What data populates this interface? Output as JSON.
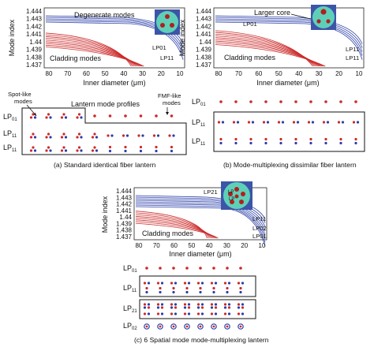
{
  "panel_a": {
    "ylabel": "Mode index",
    "xlabel": "Inner diameter (μm)",
    "yticks": [
      "1.444",
      "1.443",
      "1.442",
      "1.441",
      "1.44",
      "1.439",
      "1.438",
      "1.437"
    ],
    "xticks": [
      "80",
      "70",
      "60",
      "50",
      "40",
      "30",
      "20",
      "10"
    ],
    "label_degenerate": "Degenerate modes",
    "label_cladding": "Cladding modes",
    "label_lp01": "LP01",
    "label_lp11": "LP11",
    "annot_spot": "Spot-like modes",
    "annot_lantern": "Lantern mode profiles",
    "annot_fmf": "FMF-like modes",
    "rows": [
      "LP01",
      "LP11",
      "LP11"
    ],
    "caption": "(a) Standard identical fiber lantern"
  },
  "panel_b": {
    "ylabel": "Mode index",
    "xlabel": "Inner diameter (μm)",
    "yticks": [
      "1.444",
      "1.443",
      "1.442",
      "1.441",
      "1.44",
      "1.439",
      "1.438",
      "1.437"
    ],
    "xticks": [
      "80",
      "70",
      "60",
      "50",
      "40",
      "30",
      "20",
      "10"
    ],
    "label_larger_core": "Larger core",
    "label_cladding": "Cladding modes",
    "label_lp01": "LP01",
    "label_lp11a": "LP11",
    "label_lp11b": "LP11",
    "rows": [
      "LP01",
      "LP11",
      "LP11"
    ],
    "caption": "(b) Mode-multiplexing dissimilar fiber lantern"
  },
  "panel_c": {
    "ylabel": "Mode index",
    "xlabel": "Inner diameter (μm)",
    "yticks": [
      "1.444",
      "1.443",
      "1.442",
      "1.441",
      "1.44",
      "1.439",
      "1.438",
      "1.437"
    ],
    "xticks": [
      "80",
      "70",
      "60",
      "50",
      "40",
      "30",
      "20",
      "10"
    ],
    "label_cladding": "Cladding modes",
    "label_lp21": "LP21",
    "label_lp11": "LP11",
    "label_lp02": "LP02",
    "label_lp01": "LP01",
    "rows": [
      "LP01",
      "LP11",
      "LP21",
      "LP02"
    ],
    "caption": "(c) 6 Spatial mode mode-multiplexing lantern"
  },
  "colors": {
    "red": "#cc2a2a",
    "blue": "#2a3ea8",
    "fiber": "#5fd0b8",
    "core": "#b02020"
  }
}
